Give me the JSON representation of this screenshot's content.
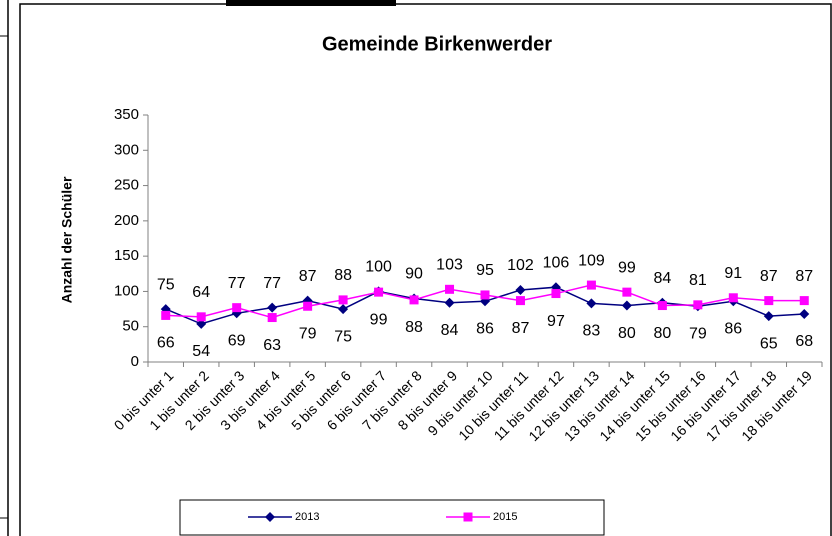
{
  "chart_data": {
    "type": "line",
    "title": "Gemeinde Birkenwerder",
    "y_label": "Anzahl der Schüler",
    "categories": [
      "0 bis unter 1",
      "1 bis unter 2",
      "2 bis unter 3",
      "3 bis unter 4",
      "4 bis unter 5",
      "5 bis unter 6",
      "6 bis unter 7",
      "7 bis unter 8",
      "8 bis unter 9",
      "9 bis unter 10",
      "10 bis unter 11",
      "11 bis unter 12",
      "12 bis unter 13",
      "13 bis unter 14",
      "14 bis unter 15",
      "15 bis unter 16",
      "16 bis unter 17",
      "17 bis unter 18",
      "18 bis unter 19"
    ],
    "series": [
      {
        "name": "2013",
        "color": "#000080",
        "marker": "diamond",
        "values": [
          75,
          54,
          69,
          77,
          87,
          75,
          100,
          90,
          84,
          86,
          102,
          106,
          83,
          80,
          84,
          79,
          86,
          65,
          68
        ]
      },
      {
        "name": "2015",
        "color": "#ff00ff",
        "marker": "square",
        "values": [
          66,
          64,
          77,
          63,
          79,
          88,
          99,
          88,
          103,
          95,
          87,
          97,
          109,
          99,
          80,
          81,
          91,
          87,
          87
        ]
      }
    ],
    "ylim": [
      0,
      350
    ],
    "yticks": [
      0,
      50,
      100,
      150,
      200,
      250,
      300,
      350
    ],
    "grid": false,
    "legend": "bottom"
  }
}
